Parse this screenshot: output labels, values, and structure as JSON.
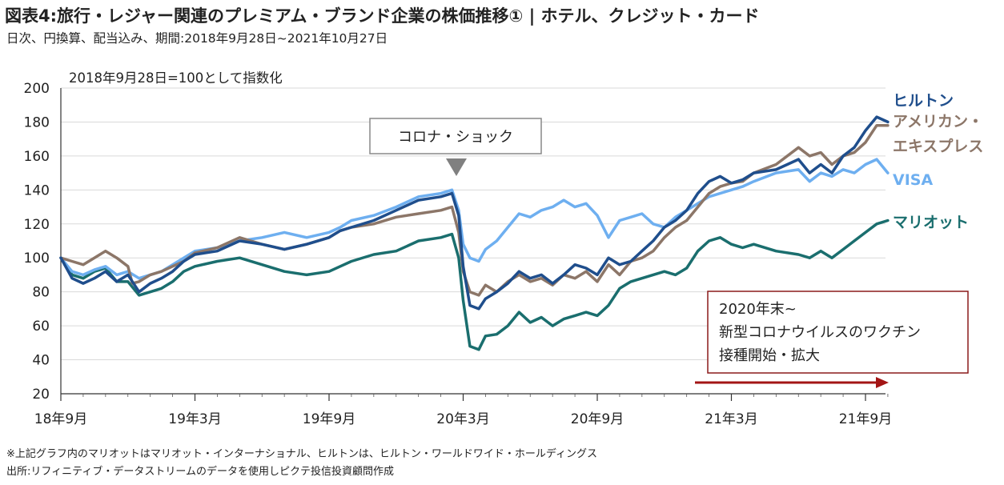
{
  "header": {
    "title": "図表4:旅行・レジャー関連のプレミアム・ブランド企業の株価推移① | ホテル、クレジット・カード",
    "subtitle": "日次、円換算、配当込み、期間:2018年9月28日~2021年10月27日"
  },
  "footer": {
    "note1": "※上記グラフ内のマリオットはマリオット・インターナショナル、ヒルトンは、ヒルトン・ワールドワイド・ホールディングス",
    "note2": "出所:リフィニティブ・データストリームのデータを使用しピクテ投信投資顧問作成"
  },
  "annotations": {
    "index_note": "2018年9月28日=100として指数化",
    "corona": "コロナ・ショック",
    "vaccine_line1": "2020年末~",
    "vaccine_line2": "新型コロナウイルスのワクチン",
    "vaccine_line3": "接種開始・拡大"
  },
  "chart_data": {
    "type": "line",
    "title": "図表4:旅行・レジャー関連のプレミアム・ブランド企業の株価推移① | ホテル、クレジット・カード",
    "ylim": [
      20,
      200
    ],
    "yticks": [
      20,
      40,
      60,
      80,
      100,
      120,
      140,
      160,
      180,
      200
    ],
    "x_tick_labels": [
      "18年9月",
      "19年3月",
      "19年9月",
      "20年3月",
      "20年9月",
      "21年3月",
      "21年9月"
    ],
    "x_tick_months": [
      0,
      6,
      12,
      18,
      24,
      30,
      36
    ],
    "x_range_months": [
      0,
      37
    ],
    "grid": "horizontal",
    "series": [
      {
        "name": "ヒルトン",
        "label_lines": [
          "ヒルトン"
        ],
        "color": "#1f4e8c",
        "points": [
          [
            0,
            100
          ],
          [
            0.5,
            88
          ],
          [
            1,
            85
          ],
          [
            1.5,
            88
          ],
          [
            2,
            92
          ],
          [
            2.5,
            86
          ],
          [
            3,
            90
          ],
          [
            3.5,
            80
          ],
          [
            4,
            85
          ],
          [
            4.5,
            88
          ],
          [
            5,
            92
          ],
          [
            5.5,
            98
          ],
          [
            6,
            102
          ],
          [
            7,
            104
          ],
          [
            8,
            110
          ],
          [
            9,
            108
          ],
          [
            10,
            105
          ],
          [
            11,
            108
          ],
          [
            12,
            112
          ],
          [
            12.5,
            116
          ],
          [
            13,
            118
          ],
          [
            14,
            122
          ],
          [
            15,
            128
          ],
          [
            16,
            134
          ],
          [
            17,
            136
          ],
          [
            17.5,
            138
          ],
          [
            17.8,
            125
          ],
          [
            18,
            95
          ],
          [
            18.3,
            72
          ],
          [
            18.7,
            70
          ],
          [
            19,
            76
          ],
          [
            19.5,
            80
          ],
          [
            20,
            85
          ],
          [
            20.5,
            92
          ],
          [
            21,
            88
          ],
          [
            21.5,
            90
          ],
          [
            22,
            85
          ],
          [
            22.5,
            90
          ],
          [
            23,
            96
          ],
          [
            23.5,
            94
          ],
          [
            24,
            90
          ],
          [
            24.5,
            100
          ],
          [
            25,
            96
          ],
          [
            25.5,
            98
          ],
          [
            26,
            104
          ],
          [
            26.5,
            110
          ],
          [
            27,
            118
          ],
          [
            27.5,
            122
          ],
          [
            28,
            128
          ],
          [
            28.5,
            138
          ],
          [
            29,
            145
          ],
          [
            29.5,
            148
          ],
          [
            30,
            144
          ],
          [
            30.5,
            146
          ],
          [
            31,
            150
          ],
          [
            32,
            152
          ],
          [
            33,
            158
          ],
          [
            33.5,
            150
          ],
          [
            34,
            155
          ],
          [
            34.5,
            150
          ],
          [
            35,
            160
          ],
          [
            35.5,
            165
          ],
          [
            36,
            175
          ],
          [
            36.5,
            183
          ],
          [
            37,
            180
          ]
        ]
      },
      {
        "name": "アメリカン・エキスプレス",
        "label_lines": [
          "アメリカン・",
          "エキスプレス"
        ],
        "color": "#8c7668",
        "points": [
          [
            0,
            100
          ],
          [
            0.5,
            98
          ],
          [
            1,
            96
          ],
          [
            1.5,
            100
          ],
          [
            2,
            104
          ],
          [
            2.5,
            100
          ],
          [
            3,
            95
          ],
          [
            3.2,
            85
          ],
          [
            3.5,
            86
          ],
          [
            4,
            90
          ],
          [
            4.5,
            92
          ],
          [
            5,
            95
          ],
          [
            5.5,
            98
          ],
          [
            6,
            103
          ],
          [
            7,
            106
          ],
          [
            8,
            112
          ],
          [
            9,
            108
          ],
          [
            10,
            105
          ],
          [
            11,
            108
          ],
          [
            12,
            112
          ],
          [
            12.5,
            116
          ],
          [
            13,
            118
          ],
          [
            14,
            120
          ],
          [
            15,
            124
          ],
          [
            16,
            126
          ],
          [
            17,
            128
          ],
          [
            17.5,
            130
          ],
          [
            17.8,
            115
          ],
          [
            18,
            92
          ],
          [
            18.3,
            80
          ],
          [
            18.7,
            78
          ],
          [
            19,
            84
          ],
          [
            19.5,
            80
          ],
          [
            20,
            86
          ],
          [
            20.5,
            90
          ],
          [
            21,
            86
          ],
          [
            21.5,
            88
          ],
          [
            22,
            84
          ],
          [
            22.5,
            90
          ],
          [
            23,
            88
          ],
          [
            23.5,
            92
          ],
          [
            24,
            86
          ],
          [
            24.5,
            96
          ],
          [
            25,
            90
          ],
          [
            25.5,
            98
          ],
          [
            26,
            100
          ],
          [
            26.5,
            104
          ],
          [
            27,
            112
          ],
          [
            27.5,
            118
          ],
          [
            28,
            122
          ],
          [
            28.5,
            130
          ],
          [
            29,
            138
          ],
          [
            29.5,
            142
          ],
          [
            30,
            144
          ],
          [
            30.5,
            145
          ],
          [
            31,
            150
          ],
          [
            32,
            155
          ],
          [
            33,
            165
          ],
          [
            33.5,
            160
          ],
          [
            34,
            162
          ],
          [
            34.5,
            155
          ],
          [
            35,
            160
          ],
          [
            35.5,
            162
          ],
          [
            36,
            168
          ],
          [
            36.5,
            178
          ],
          [
            37,
            178
          ]
        ]
      },
      {
        "name": "VISA",
        "label_lines": [
          "VISA"
        ],
        "color": "#6eaff0",
        "points": [
          [
            0,
            100
          ],
          [
            0.5,
            92
          ],
          [
            1,
            90
          ],
          [
            1.5,
            93
          ],
          [
            2,
            95
          ],
          [
            2.5,
            90
          ],
          [
            3,
            92
          ],
          [
            3.5,
            88
          ],
          [
            4,
            90
          ],
          [
            4.5,
            92
          ],
          [
            5,
            96
          ],
          [
            5.5,
            100
          ],
          [
            6,
            104
          ],
          [
            7,
            106
          ],
          [
            8,
            110
          ],
          [
            9,
            112
          ],
          [
            10,
            115
          ],
          [
            11,
            112
          ],
          [
            12,
            115
          ],
          [
            12.5,
            118
          ],
          [
            13,
            122
          ],
          [
            14,
            125
          ],
          [
            15,
            130
          ],
          [
            16,
            136
          ],
          [
            17,
            138
          ],
          [
            17.5,
            140
          ],
          [
            17.8,
            128
          ],
          [
            18,
            108
          ],
          [
            18.3,
            100
          ],
          [
            18.7,
            98
          ],
          [
            19,
            105
          ],
          [
            19.5,
            110
          ],
          [
            20,
            118
          ],
          [
            20.5,
            126
          ],
          [
            21,
            124
          ],
          [
            21.5,
            128
          ],
          [
            22,
            130
          ],
          [
            22.5,
            134
          ],
          [
            23,
            130
          ],
          [
            23.5,
            132
          ],
          [
            24,
            125
          ],
          [
            24.5,
            112
          ],
          [
            25,
            122
          ],
          [
            25.5,
            124
          ],
          [
            26,
            126
          ],
          [
            26.5,
            120
          ],
          [
            27,
            118
          ],
          [
            27.5,
            124
          ],
          [
            28,
            128
          ],
          [
            28.5,
            132
          ],
          [
            29,
            136
          ],
          [
            29.5,
            138
          ],
          [
            30,
            140
          ],
          [
            30.5,
            142
          ],
          [
            31,
            145
          ],
          [
            32,
            150
          ],
          [
            33,
            152
          ],
          [
            33.5,
            145
          ],
          [
            34,
            150
          ],
          [
            34.5,
            148
          ],
          [
            35,
            152
          ],
          [
            35.5,
            150
          ],
          [
            36,
            155
          ],
          [
            36.5,
            158
          ],
          [
            37,
            150
          ]
        ]
      },
      {
        "name": "マリオット",
        "label_lines": [
          "マリオット"
        ],
        "color": "#1a6e6e",
        "points": [
          [
            0,
            100
          ],
          [
            0.5,
            90
          ],
          [
            1,
            88
          ],
          [
            1.5,
            92
          ],
          [
            2,
            94
          ],
          [
            2.5,
            86
          ],
          [
            3,
            86
          ],
          [
            3.5,
            78
          ],
          [
            4,
            80
          ],
          [
            4.5,
            82
          ],
          [
            5,
            86
          ],
          [
            5.5,
            92
          ],
          [
            6,
            95
          ],
          [
            7,
            98
          ],
          [
            8,
            100
          ],
          [
            9,
            96
          ],
          [
            10,
            92
          ],
          [
            11,
            90
          ],
          [
            12,
            92
          ],
          [
            12.5,
            95
          ],
          [
            13,
            98
          ],
          [
            14,
            102
          ],
          [
            15,
            104
          ],
          [
            16,
            110
          ],
          [
            17,
            112
          ],
          [
            17.5,
            114
          ],
          [
            17.8,
            100
          ],
          [
            18,
            75
          ],
          [
            18.3,
            48
          ],
          [
            18.7,
            46
          ],
          [
            19,
            54
          ],
          [
            19.5,
            55
          ],
          [
            20,
            60
          ],
          [
            20.5,
            68
          ],
          [
            21,
            62
          ],
          [
            21.5,
            65
          ],
          [
            22,
            60
          ],
          [
            22.5,
            64
          ],
          [
            23,
            66
          ],
          [
            23.5,
            68
          ],
          [
            24,
            66
          ],
          [
            24.5,
            72
          ],
          [
            25,
            82
          ],
          [
            25.5,
            86
          ],
          [
            26,
            88
          ],
          [
            26.5,
            90
          ],
          [
            27,
            92
          ],
          [
            27.5,
            90
          ],
          [
            28,
            94
          ],
          [
            28.5,
            104
          ],
          [
            29,
            110
          ],
          [
            29.5,
            112
          ],
          [
            30,
            108
          ],
          [
            30.5,
            106
          ],
          [
            31,
            108
          ],
          [
            32,
            104
          ],
          [
            33,
            102
          ],
          [
            33.5,
            100
          ],
          [
            34,
            104
          ],
          [
            34.5,
            100
          ],
          [
            35,
            105
          ],
          [
            35.5,
            110
          ],
          [
            36,
            115
          ],
          [
            36.5,
            120
          ],
          [
            37,
            122
          ]
        ]
      }
    ]
  }
}
